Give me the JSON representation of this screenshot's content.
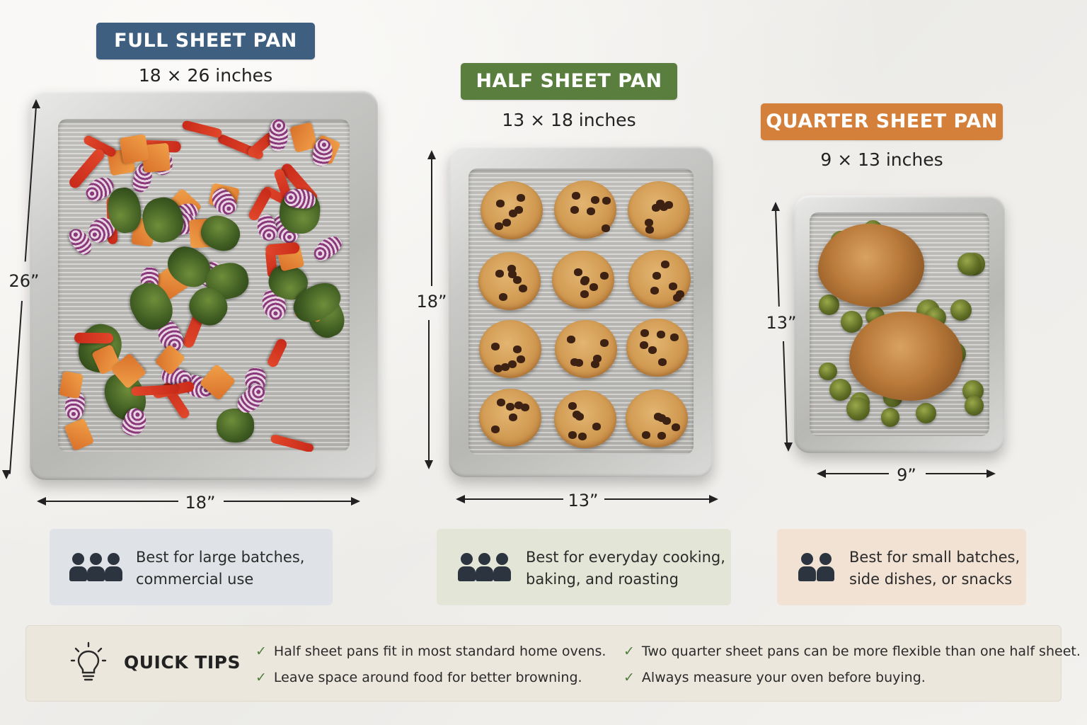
{
  "pans": [
    {
      "id": "full",
      "title": "FULL SHEET PAN",
      "dimensions": "18 × 26 inches",
      "width_label": "18”",
      "height_label": "26”",
      "color": "#3e5f80",
      "food": "roasted vegetables"
    },
    {
      "id": "half",
      "title": "HALF SHEET PAN",
      "dimensions": "13 × 18 inches",
      "width_label": "13”",
      "height_label": "18”",
      "color": "#5a7e3e",
      "food": "chocolate chip cookies"
    },
    {
      "id": "quarter",
      "title": "QUARTER SHEET PAN",
      "dimensions": "9 × 13 inches",
      "width_label": "9”",
      "height_label": "13”",
      "color": "#d4803a",
      "food": "chicken and brussels sprouts"
    }
  ],
  "cards": [
    {
      "line1": "Best for large batches,",
      "line2": "commercial use",
      "people": 3,
      "bg": "#dfe3e7"
    },
    {
      "line1": "Best for everyday cooking,",
      "line2": "baking, and roasting",
      "people": 3,
      "bg": "#e3e6d6"
    },
    {
      "line1": "Best for small batches,",
      "line2": "side dishes, or snacks",
      "people": 2,
      "bg": "#f1e2d4"
    }
  ],
  "quick_tips": {
    "title": "QUICK TIPS",
    "icon": "lightbulb-icon",
    "items": [
      "Half sheet pans fit in most standard home ovens.",
      "Two quarter sheet pans can be more flexible than one half sheet.",
      "Leave space around food for better browning.",
      "Always measure your oven before buying."
    ]
  }
}
